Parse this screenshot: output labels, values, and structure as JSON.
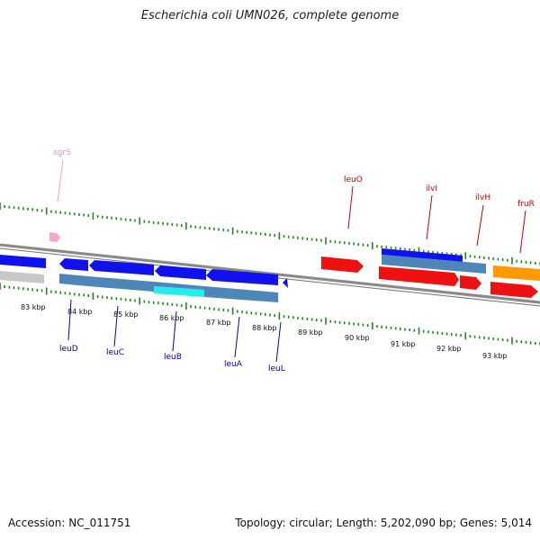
{
  "title": "Escherichia coli UMN026, complete genome",
  "footer": {
    "accession": "Accession: NC_011751",
    "summary": "Topology: circular; Length: 5,202,090 bp; Genes: 5,014"
  },
  "colors": {
    "forward_gene": "#ee1111",
    "reverse_gene": "#1111ee",
    "cds_bar": "#4f86b8",
    "highlight": "#22eeee",
    "orange_gene": "#ff9900",
    "pink_feature": "#f7a6c9",
    "grey_gene": "#c8c8c8",
    "backbone": "#888888",
    "tick": "#1f8a1f",
    "label_forward": "#cc0000",
    "label_reverse": "#0000bb",
    "label_pink": "#f090b8"
  },
  "kbp_labels": [
    "83 kbp",
    "84 kbp",
    "85 kbp",
    "86 kbp",
    "87 kbp",
    "88 kbp",
    "89 kbp",
    "90 kbp",
    "91 kbp",
    "92 kbp",
    "93 kbp"
  ],
  "top_labels": [
    {
      "text": "sgrS",
      "kind": "pink"
    },
    {
      "text": "leuO",
      "kind": "forward"
    },
    {
      "text": "ilvI",
      "kind": "forward"
    },
    {
      "text": "ilvH",
      "kind": "forward"
    },
    {
      "text": "fruR",
      "kind": "forward"
    }
  ],
  "bottom_labels": [
    {
      "text": "leuD",
      "kind": "reverse"
    },
    {
      "text": "leuC",
      "kind": "reverse"
    },
    {
      "text": "leuB",
      "kind": "reverse"
    },
    {
      "text": "leuA",
      "kind": "reverse"
    },
    {
      "text": "leuL",
      "kind": "reverse"
    }
  ]
}
